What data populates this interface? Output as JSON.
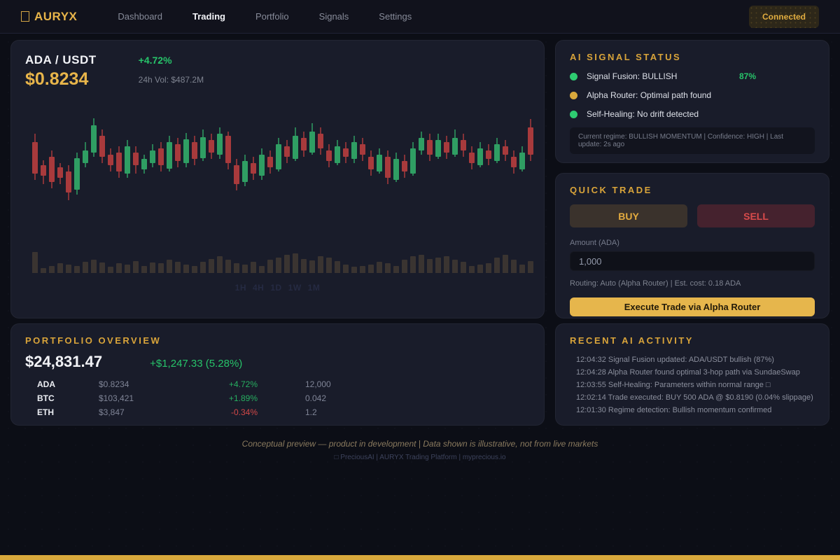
{
  "nav": {
    "logo": "AURYX",
    "items": [
      {
        "label": "Dashboard",
        "active": false
      },
      {
        "label": "Trading",
        "active": true
      },
      {
        "label": "Portfolio",
        "active": false
      },
      {
        "label": "Signals",
        "active": false
      },
      {
        "label": "Settings",
        "active": false
      }
    ],
    "status_badge": "Connected"
  },
  "chart": {
    "pair": "ADA / USDT",
    "price": "$0.8234",
    "change": "+4.72%",
    "volume_label": "24h Vol: $487.2M",
    "timeframes": [
      "1H",
      "4H",
      "1D",
      "1W",
      "1M"
    ]
  },
  "chart_data": {
    "type": "candlestick",
    "description": "ADA/USDT price candles with volume, values on 0-100 relative scale",
    "colors": {
      "up": "#2f9e63",
      "down": "#a83a3c",
      "volume": "#3a3431"
    },
    "candles": [
      [
        70,
        40,
        78,
        34
      ],
      [
        48,
        38,
        53,
        30
      ],
      [
        56,
        32,
        62,
        26
      ],
      [
        46,
        36,
        50,
        30
      ],
      [
        42,
        22,
        48,
        15
      ],
      [
        25,
        55,
        60,
        20
      ],
      [
        50,
        62,
        70,
        46
      ],
      [
        60,
        86,
        93,
        56
      ],
      [
        76,
        56,
        82,
        50
      ],
      [
        58,
        48,
        64,
        42
      ],
      [
        60,
        42,
        66,
        36
      ],
      [
        40,
        66,
        72,
        36
      ],
      [
        60,
        48,
        66,
        40
      ],
      [
        44,
        54,
        58,
        40
      ],
      [
        50,
        62,
        68,
        46
      ],
      [
        64,
        48,
        70,
        42
      ],
      [
        45,
        70,
        76,
        42
      ],
      [
        68,
        52,
        74,
        46
      ],
      [
        50,
        73,
        79,
        46
      ],
      [
        70,
        54,
        76,
        48
      ],
      [
        55,
        75,
        82,
        52
      ],
      [
        72,
        60,
        78,
        54
      ],
      [
        58,
        78,
        84,
        54
      ],
      [
        76,
        50,
        80,
        44
      ],
      [
        48,
        30,
        54,
        24
      ],
      [
        32,
        52,
        58,
        28
      ],
      [
        50,
        40,
        56,
        34
      ],
      [
        38,
        58,
        64,
        34
      ],
      [
        56,
        46,
        62,
        40
      ],
      [
        44,
        68,
        74,
        42
      ],
      [
        66,
        56,
        72,
        50
      ],
      [
        54,
        76,
        84,
        52
      ],
      [
        74,
        62,
        80,
        56
      ],
      [
        60,
        80,
        88,
        58
      ],
      [
        78,
        64,
        84,
        58
      ],
      [
        62,
        52,
        68,
        46
      ],
      [
        50,
        66,
        72,
        48
      ],
      [
        64,
        56,
        70,
        50
      ],
      [
        54,
        70,
        76,
        50
      ],
      [
        68,
        58,
        74,
        52
      ],
      [
        56,
        44,
        62,
        38
      ],
      [
        42,
        58,
        64,
        40
      ],
      [
        56,
        36,
        62,
        30
      ],
      [
        34,
        54,
        60,
        32
      ],
      [
        52,
        42,
        58,
        36
      ],
      [
        40,
        64,
        70,
        38
      ],
      [
        62,
        74,
        80,
        58
      ],
      [
        72,
        58,
        78,
        52
      ],
      [
        56,
        72,
        78,
        54
      ],
      [
        70,
        60,
        76,
        54
      ],
      [
        58,
        74,
        82,
        56
      ],
      [
        72,
        62,
        78,
        56
      ],
      [
        60,
        50,
        66,
        44
      ],
      [
        48,
        64,
        70,
        46
      ],
      [
        62,
        54,
        68,
        48
      ],
      [
        52,
        68,
        74,
        50
      ],
      [
        66,
        58,
        72,
        52
      ],
      [
        56,
        46,
        62,
        40
      ],
      [
        44,
        60,
        66,
        42
      ],
      [
        84,
        58,
        92,
        52
      ]
    ],
    "volumes": [
      88,
      22,
      30,
      42,
      34,
      30,
      46,
      56,
      44,
      26,
      40,
      34,
      50,
      30,
      44,
      40,
      56,
      46,
      34,
      30,
      46,
      60,
      72,
      56,
      40,
      34,
      46,
      30,
      56,
      64,
      76,
      82,
      60,
      54,
      70,
      64,
      50,
      34,
      26,
      30,
      36,
      46,
      40,
      30,
      56,
      70,
      76,
      60,
      66,
      72,
      56,
      46,
      30,
      36,
      40,
      66,
      76,
      56,
      34,
      50
    ]
  },
  "ai_signals": {
    "title": "AI SIGNAL STATUS",
    "items": [
      {
        "dot_color": "#2ecc71",
        "label": "Signal Fusion: BULLISH",
        "value": "87%"
      },
      {
        "dot_color": "#d9a93c",
        "label": "Alpha Router: Optimal path found",
        "value": ""
      },
      {
        "dot_color": "#2ecc71",
        "label": "Self-Healing: No drift detected",
        "value": ""
      }
    ],
    "regime": "Current regime: BULLISH MOMENTUM | Confidence: HIGH | Last update: 2s ago"
  },
  "quick_trade": {
    "title": "QUICK TRADE",
    "buy_label": "BUY",
    "sell_label": "SELL",
    "amount_label": "Amount (ADA)",
    "amount_value": "1,000",
    "routing": "Routing: Auto (Alpha Router) | Est. cost: 0.18 ADA",
    "execute_label": "Execute Trade via Alpha Router"
  },
  "portfolio": {
    "title": "PORTFOLIO OVERVIEW",
    "total": "$24,831.47",
    "change": "+$1,247.33 (5.28%)",
    "rows": [
      {
        "symbol": "ADA",
        "price": "$0.8234",
        "change": "+4.72%",
        "positive": true,
        "amount": "12,000"
      },
      {
        "symbol": "BTC",
        "price": "$103,421",
        "change": "+1.89%",
        "positive": true,
        "amount": "0.042"
      },
      {
        "symbol": "ETH",
        "price": "$3,847",
        "change": "-0.34%",
        "positive": false,
        "amount": "1.2"
      }
    ]
  },
  "activity": {
    "title": "RECENT AI ACTIVITY",
    "logs": [
      "12:04:32 Signal Fusion updated: ADA/USDT bullish (87%)",
      "12:04:28 Alpha Router found optimal 3-hop path via SundaeSwap",
      "12:03:55 Self-Healing: Parameters within normal range □",
      "12:02:14 Trade executed: BUY 500 ADA @ $0.8190 (0.04% slippage)",
      "12:01:30 Regime detection: Bullish momentum confirmed"
    ]
  },
  "footer": {
    "disclaimer": "Conceptual preview — product in development | Data shown is illustrative, not from live markets",
    "brand": "□ PreciousAI | AURYX Trading Platform | myprecious.io"
  }
}
